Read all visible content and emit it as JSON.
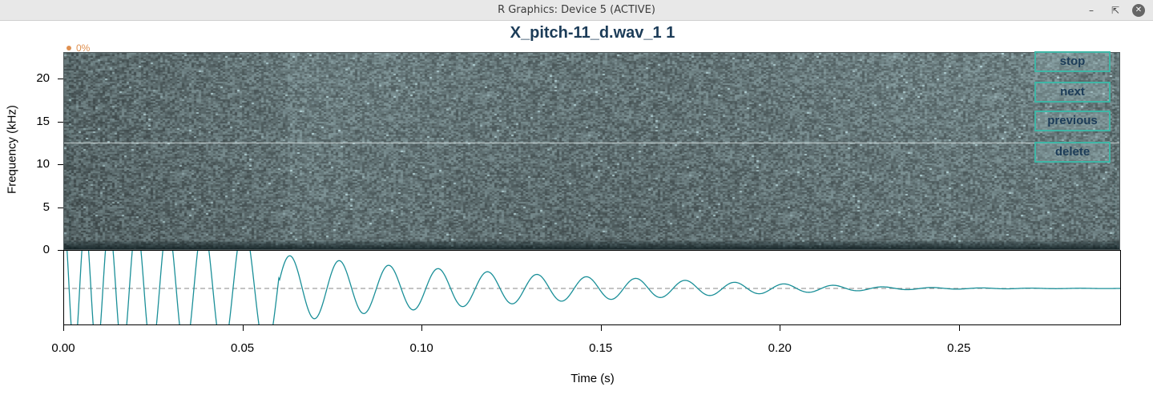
{
  "window": {
    "title": "R Graphics: Device 5 (ACTIVE)",
    "minimize_icon": "minimize-icon",
    "maximize_icon": "restore-icon",
    "close_icon": "close-icon"
  },
  "plot": {
    "title": "X_pitch-11_d.wav_1 1",
    "progress_label": "0%",
    "progress_value": 0
  },
  "controls": {
    "stop": "stop",
    "next": "next",
    "previous": "previous",
    "delete": "delete"
  },
  "colors": {
    "spectrogram_base": "#5a6c6e",
    "waveform": "#1a8f98",
    "button_border": "#3fb6a6",
    "title": "#1c3c58",
    "progress": "#e09050"
  },
  "chart_data": [
    {
      "type": "heatmap",
      "title": "X_pitch-11_d.wav_1 1",
      "xlabel": "",
      "ylabel": "Frequency (kHz)",
      "xlim": [
        0,
        0.295
      ],
      "ylim": [
        0,
        22
      ],
      "y_ticks": [
        "0",
        "5",
        "10",
        "15",
        "20"
      ],
      "y_tick_values": [
        0,
        5,
        10,
        15,
        20
      ],
      "horizontal_line_khz": 12.6
    },
    {
      "type": "line",
      "xlabel": "Time (s)",
      "ylabel": "",
      "xlim": [
        0,
        0.295
      ],
      "x_ticks": [
        "0.00",
        "0.05",
        "0.10",
        "0.15",
        "0.20",
        "0.25"
      ],
      "x_tick_values": [
        0.0,
        0.05,
        0.1,
        0.15,
        0.2,
        0.25
      ],
      "series": [
        {
          "peaks": [
            {
              "x": 0.06,
              "y": 1.0
            },
            {
              "x": 0.073,
              "y": 0.87
            },
            {
              "x": 0.086,
              "y": 0.72
            },
            {
              "x": 0.1,
              "y": 0.62
            },
            {
              "x": 0.114,
              "y": 0.52
            },
            {
              "x": 0.128,
              "y": 0.44
            },
            {
              "x": 0.142,
              "y": 0.36
            },
            {
              "x": 0.157,
              "y": 0.31
            },
            {
              "x": 0.171,
              "y": 0.25
            },
            {
              "x": 0.185,
              "y": 0.19
            },
            {
              "x": 0.199,
              "y": 0.14
            },
            {
              "x": 0.213,
              "y": 0.1
            },
            {
              "x": 0.227,
              "y": 0.05
            }
          ]
        }
      ]
    }
  ]
}
